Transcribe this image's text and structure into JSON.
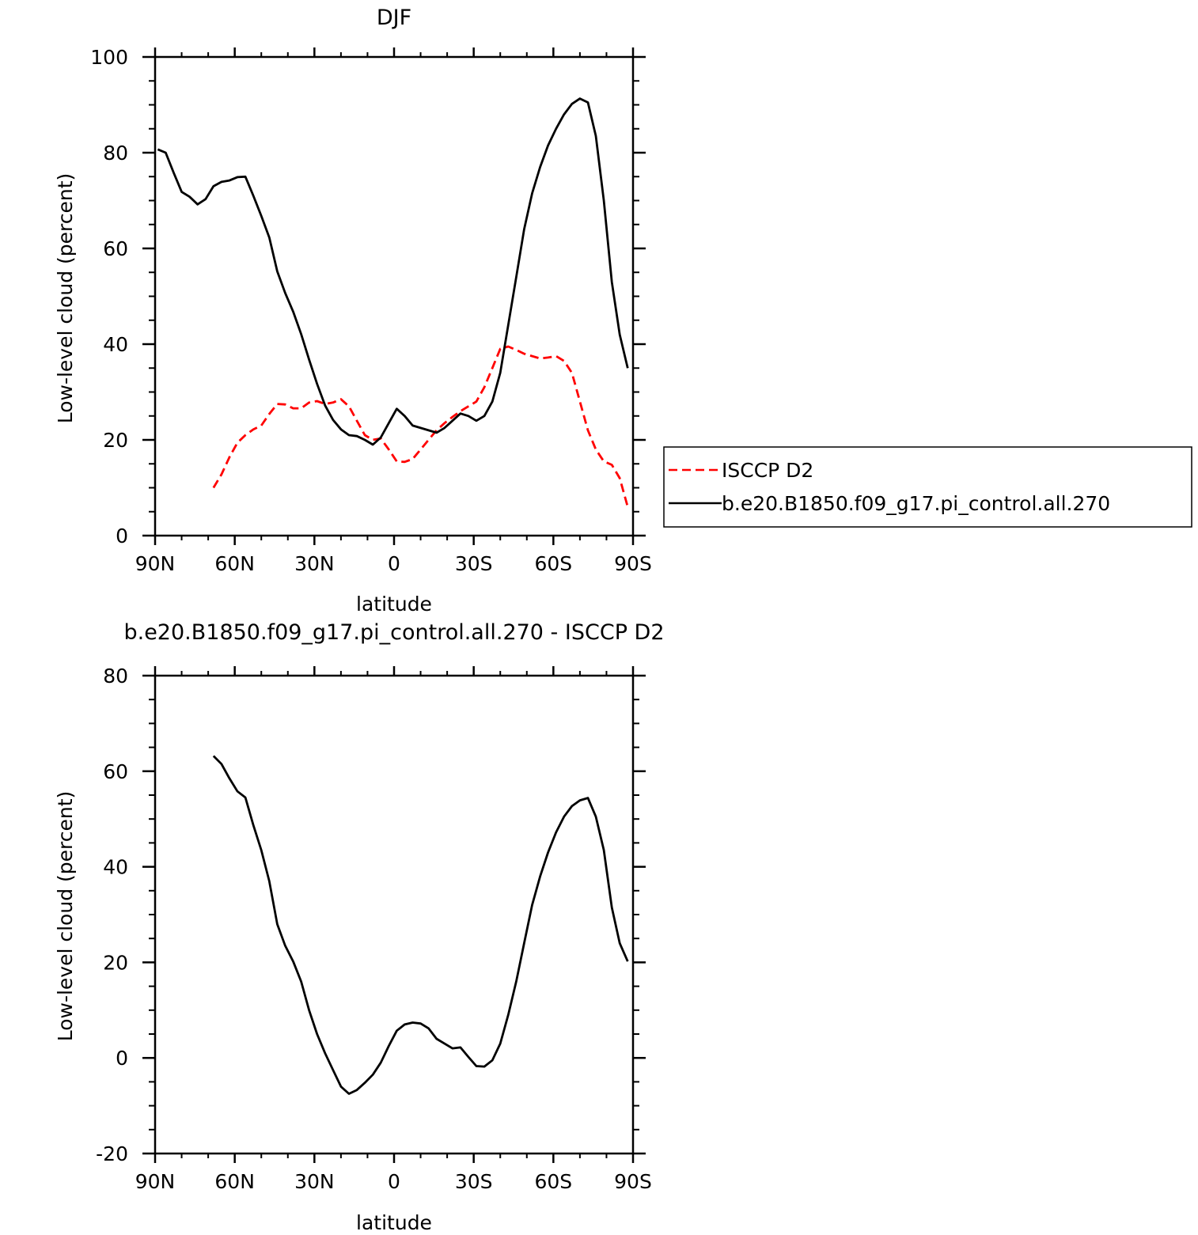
{
  "chart_data": [
    {
      "type": "line",
      "title": "DJF",
      "xlabel": "latitude",
      "ylabel": "Low-level cloud (percent)",
      "xlim": [
        90,
        -90
      ],
      "ylim": [
        0,
        100
      ],
      "x_ticks": [
        90,
        60,
        30,
        0,
        -30,
        -60,
        -90
      ],
      "x_tick_labels": [
        "90N",
        "60N",
        "30N",
        "0",
        "30S",
        "60S",
        "90S"
      ],
      "y_ticks": [
        0,
        20,
        40,
        60,
        80,
        100
      ],
      "y_tick_labels": [
        "0",
        "20",
        "40",
        "60",
        "80",
        "100"
      ],
      "grid": false,
      "legend_position": "right",
      "series": [
        {
          "name": "ISCCP D2",
          "color": "#ff0000",
          "dash": "dashed",
          "x": [
            68,
            65,
            62,
            59,
            56,
            53,
            50,
            47,
            44,
            41,
            38,
            35,
            32,
            29,
            26,
            23,
            20,
            17,
            14,
            11,
            8,
            5,
            2,
            -1,
            -4,
            -7,
            -10,
            -13,
            -16,
            -19,
            -22,
            -25,
            -28,
            -31,
            -34,
            -37,
            -40,
            -43,
            -46,
            -49,
            -52,
            -55,
            -58,
            -61,
            -64,
            -67,
            -70,
            -73,
            -76,
            -79,
            -82,
            -85,
            -88
          ],
          "y": [
            10,
            12.8,
            16.4,
            19.4,
            21,
            22.2,
            23,
            25.4,
            27.5,
            27.4,
            26.6,
            26.6,
            27.8,
            28.1,
            27.5,
            27.8,
            28.5,
            27,
            24,
            21,
            20,
            20.3,
            18,
            15.5,
            15.4,
            16,
            18,
            20,
            22,
            23.5,
            24.8,
            26,
            27,
            28,
            31,
            35,
            39,
            39.5,
            38.8,
            38,
            37.5,
            37,
            37.2,
            37.5,
            36.5,
            34,
            28,
            22,
            18,
            15.5,
            14.8,
            12,
            6
          ]
        },
        {
          "name": "b.e20.B1850.f09_g17.pi_control.all.270",
          "color": "#000000",
          "dash": "solid",
          "x": [
            89,
            86,
            83,
            80,
            77,
            74,
            71,
            68,
            65,
            62,
            59,
            56,
            53,
            50,
            47,
            44,
            41,
            38,
            35,
            32,
            29,
            26,
            23,
            20,
            17,
            14,
            11,
            8,
            5,
            2,
            -1,
            -4,
            -7,
            -10,
            -13,
            -16,
            -19,
            -22,
            -25,
            -28,
            -31,
            -34,
            -37,
            -40,
            -43,
            -46,
            -49,
            -52,
            -55,
            -58,
            -61,
            -64,
            -67,
            -70,
            -73,
            -76,
            -79,
            -82,
            -85,
            -88
          ],
          "y": [
            80.7,
            80,
            75.8,
            71.8,
            70.8,
            69.2,
            70.3,
            73,
            73.9,
            74.2,
            74.9,
            75,
            71,
            66.8,
            62.3,
            55.2,
            50.7,
            46.8,
            42.1,
            36.8,
            31.7,
            27.2,
            24.2,
            22.2,
            21,
            20.8,
            20,
            19,
            20.5,
            23.5,
            26.5,
            25,
            23,
            22.5,
            22,
            21.5,
            22.5,
            24,
            25.5,
            25,
            24,
            25,
            28,
            34,
            44,
            54,
            64,
            71.5,
            77,
            81.5,
            85,
            88,
            90.2,
            91.3,
            90.5,
            83.5,
            70,
            53,
            42,
            35
          ]
        }
      ]
    },
    {
      "type": "line",
      "title": "b.e20.B1850.f09_g17.pi_control.all.270 - ISCCP D2",
      "xlabel": "latitude",
      "ylabel": "Low-level cloud (percent)",
      "xlim": [
        90,
        -90
      ],
      "ylim": [
        -20,
        80
      ],
      "x_ticks": [
        90,
        60,
        30,
        0,
        -30,
        -60,
        -90
      ],
      "x_tick_labels": [
        "90N",
        "60N",
        "30N",
        "0",
        "30S",
        "60S",
        "90S"
      ],
      "y_ticks": [
        -20,
        0,
        20,
        40,
        60,
        80
      ],
      "y_tick_labels": [
        "-20",
        "0",
        "20",
        "40",
        "60",
        "80"
      ],
      "grid": false,
      "series": [
        {
          "color": "#000000",
          "dash": "solid",
          "x": [
            68,
            65,
            62,
            59,
            56,
            53,
            50,
            47,
            44,
            41,
            38,
            35,
            32,
            29,
            26,
            23,
            20,
            17,
            14,
            11,
            8,
            5,
            2,
            -1,
            -4,
            -7,
            -10,
            -13,
            -16,
            -19,
            -22,
            -25,
            -28,
            -31,
            -34,
            -37,
            -40,
            -43,
            -46,
            -49,
            -52,
            -55,
            -58,
            -61,
            -64,
            -67,
            -70,
            -73,
            -76,
            -79,
            -82,
            -85,
            -88
          ],
          "y": [
            63.2,
            61.5,
            58.5,
            55.8,
            54.5,
            48.7,
            43.5,
            37,
            28,
            23.5,
            20.2,
            16,
            10,
            5,
            1,
            -2.5,
            -6,
            -7.5,
            -6.7,
            -5.2,
            -3.5,
            -1,
            2.5,
            5.7,
            7,
            7.4,
            7.2,
            6.2,
            4,
            3,
            2,
            2.2,
            0.2,
            -1.7,
            -1.8,
            -0.5,
            3,
            9,
            16,
            24,
            32,
            38,
            43,
            47.2,
            50.5,
            52.7,
            53.9,
            54.4,
            50.5,
            43.5,
            31.5,
            24,
            20.2
          ]
        }
      ]
    }
  ],
  "legend": {
    "entries": [
      {
        "label": "ISCCP D2",
        "color": "#ff0000",
        "dash": "dashed"
      },
      {
        "label": "b.e20.B1850.f09_g17.pi_control.all.270",
        "color": "#000000",
        "dash": "solid"
      }
    ]
  }
}
